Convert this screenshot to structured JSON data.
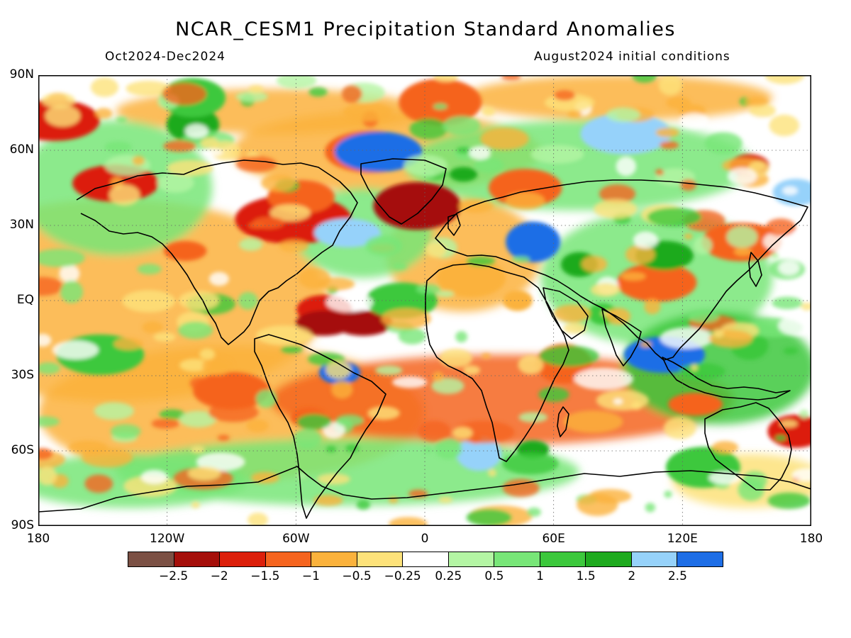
{
  "header": {
    "title": "NCAR_CESM1 Precipitation Standard Anomalies",
    "period": "Oct2024-Dec2024",
    "initial_conditions": "August2024 initial conditions"
  },
  "map": {
    "projection": "equirectangular",
    "lon_range": [
      -180,
      180
    ],
    "lat_range": [
      -90,
      90
    ],
    "lat_ticks": [
      "90N",
      "60N",
      "30N",
      "EQ",
      "30S",
      "60S",
      "90S"
    ],
    "lon_ticks": [
      "180",
      "120W",
      "60W",
      "0",
      "60E",
      "120E",
      "180"
    ],
    "gridlines": "dotted",
    "coastlines": true
  },
  "colorbar": {
    "colors": [
      "#7b5044",
      "#a50f0a",
      "#dc1f0a",
      "#f5641e",
      "#fbb23c",
      "#fde27a",
      "#ffffff",
      "#b4f5a4",
      "#78e678",
      "#3cc83c",
      "#1eaa1e",
      "#96d2fa",
      "#1e6ee6"
    ],
    "labels": [
      "-2.5",
      "-2",
      "-1.5",
      "-1",
      "-0.5",
      "-0.25",
      "0.25",
      "0.5",
      "1",
      "1.5",
      "2",
      "2.5"
    ]
  }
}
